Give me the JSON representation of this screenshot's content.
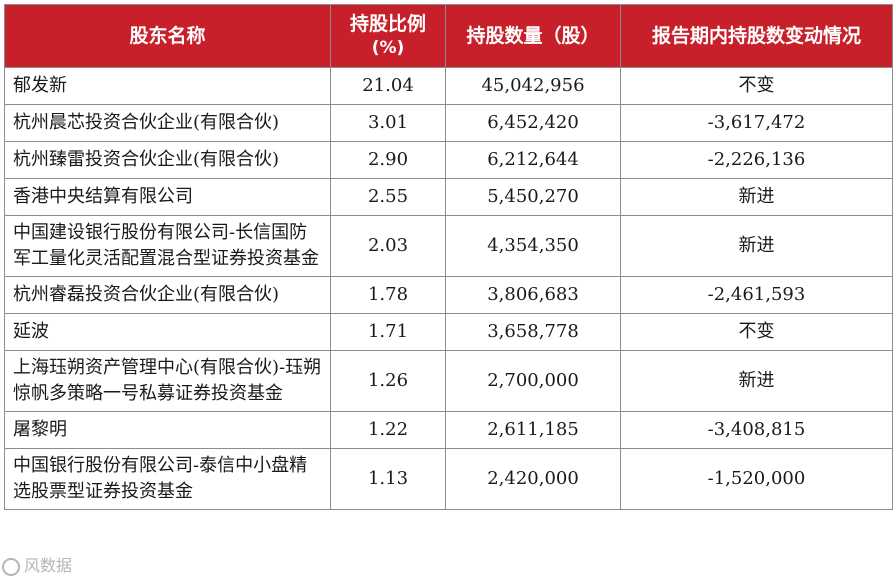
{
  "table": {
    "headers": {
      "name": "股东名称",
      "pct_line1": "持股比例",
      "pct_line2": "(%)",
      "shares": "持股数量（股）",
      "change": "报告期内持股数变动情况"
    },
    "rows": [
      {
        "name": "郁发新",
        "pct": "21.04",
        "shares": "45,042,956",
        "change": "不变"
      },
      {
        "name": "杭州晨芯投资合伙企业(有限合伙)",
        "pct": "3.01",
        "shares": "6,452,420",
        "change": "-3,617,472"
      },
      {
        "name": "杭州臻雷投资合伙企业(有限合伙)",
        "pct": "2.90",
        "shares": "6,212,644",
        "change": "-2,226,136"
      },
      {
        "name": "香港中央结算有限公司",
        "pct": "2.55",
        "shares": "5,450,270",
        "change": "新进"
      },
      {
        "name": "中国建设银行股份有限公司-长信国防军工量化灵活配置混合型证券投资基金",
        "pct": "2.03",
        "shares": "4,354,350",
        "change": "新进"
      },
      {
        "name": "杭州睿磊投资合伙企业(有限合伙)",
        "pct": "1.78",
        "shares": "3,806,683",
        "change": "-2,461,593"
      },
      {
        "name": "延波",
        "pct": "1.71",
        "shares": "3,658,778",
        "change": "不变"
      },
      {
        "name": "上海珏朔资产管理中心(有限合伙)-珏朔惊帆多策略一号私募证券投资基金",
        "pct": "1.26",
        "shares": "2,700,000",
        "change": "新进"
      },
      {
        "name": "屠黎明",
        "pct": "1.22",
        "shares": "2,611,185",
        "change": "-3,408,815"
      },
      {
        "name": "中国银行股份有限公司-泰信中小盘精选股票型证券投资基金",
        "pct": "1.13",
        "shares": "2,420,000",
        "change": "-1,520,000"
      }
    ]
  },
  "watermark": "风数据"
}
